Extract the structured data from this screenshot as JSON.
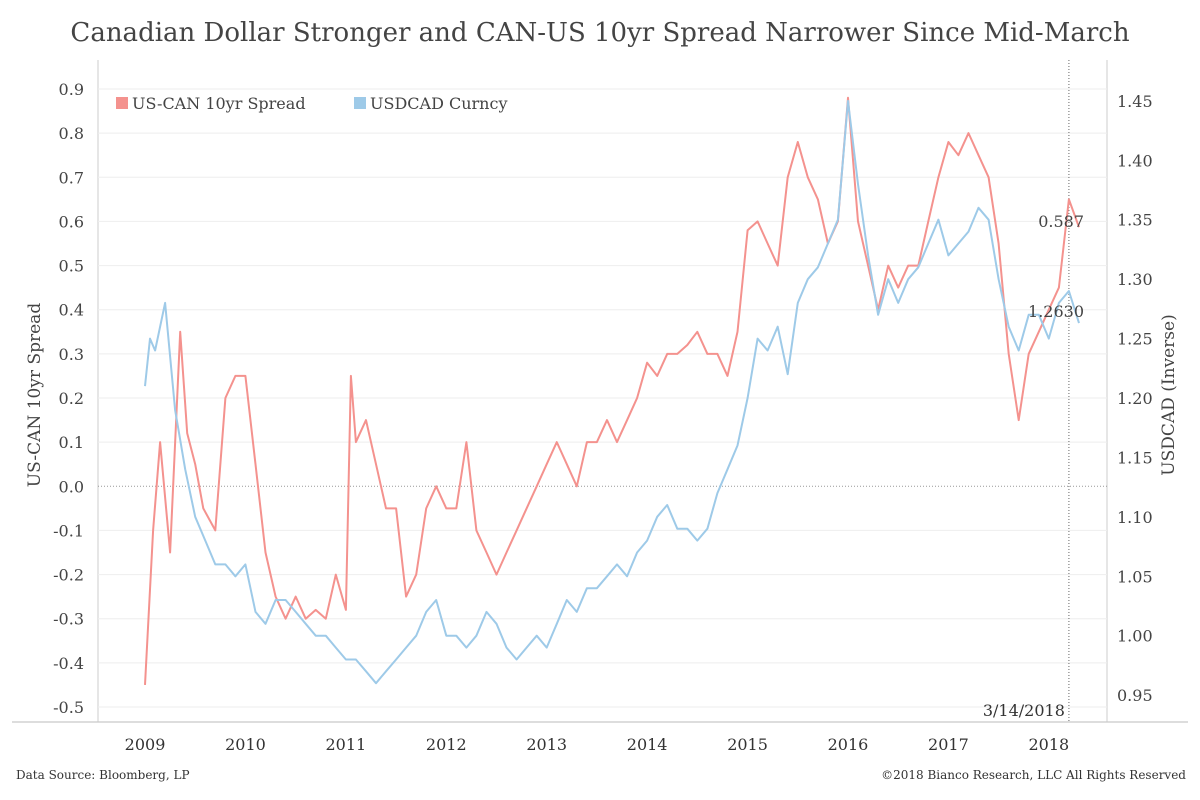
{
  "chart_data": {
    "type": "line",
    "title": "Canadian Dollar Stronger and CAN-US 10yr Spread Narrower Since Mid-March",
    "ylabel_left": "US-CAN 10yr Spread",
    "ylabel_right": "USDCAD (Inverse)",
    "left_ticks": [
      "0.9",
      "0.8",
      "0.7",
      "0.6",
      "0.5",
      "0.4",
      "0.3",
      "0.2",
      "0.1",
      "0.0",
      "-0.1",
      "-0.2",
      "-0.3",
      "-0.4",
      "-0.5"
    ],
    "right_ticks": [
      "1.45",
      "1.40",
      "1.35",
      "1.30",
      "1.25",
      "1.20",
      "1.15",
      "1.10",
      "1.05",
      "1.00",
      "0.95"
    ],
    "ylim_left": [
      -0.5,
      0.9
    ],
    "ylim_right": [
      0.94,
      1.46
    ],
    "xlim": [
      2008.95,
      2018.4
    ],
    "x_ticks": [
      "2009",
      "2010",
      "2011",
      "2012",
      "2013",
      "2014",
      "2015",
      "2016",
      "2017",
      "2018"
    ],
    "grid": "horizontal",
    "legend_position": "top-left",
    "series": [
      {
        "name": "US-CAN 10yr Spread",
        "axis": "left",
        "color": "#f4928e",
        "x": [
          2009.0,
          2009.08,
          2009.15,
          2009.25,
          2009.35,
          2009.42,
          2009.5,
          2009.58,
          2009.7,
          2009.8,
          2009.9,
          2010.0,
          2010.1,
          2010.2,
          2010.3,
          2010.4,
          2010.5,
          2010.6,
          2010.7,
          2010.8,
          2010.9,
          2011.0,
          2011.05,
          2011.1,
          2011.2,
          2011.3,
          2011.4,
          2011.5,
          2011.6,
          2011.7,
          2011.8,
          2011.9,
          2012.0,
          2012.1,
          2012.2,
          2012.3,
          2012.4,
          2012.5,
          2012.6,
          2012.7,
          2012.8,
          2012.9,
          2013.0,
          2013.1,
          2013.2,
          2013.3,
          2013.4,
          2013.5,
          2013.6,
          2013.7,
          2013.8,
          2013.9,
          2014.0,
          2014.1,
          2014.2,
          2014.3,
          2014.4,
          2014.5,
          2014.6,
          2014.7,
          2014.8,
          2014.9,
          2015.0,
          2015.1,
          2015.2,
          2015.3,
          2015.4,
          2015.5,
          2015.6,
          2015.7,
          2015.8,
          2015.9,
          2016.0,
          2016.1,
          2016.2,
          2016.3,
          2016.4,
          2016.5,
          2016.6,
          2016.7,
          2016.8,
          2016.9,
          2017.0,
          2017.1,
          2017.2,
          2017.3,
          2017.4,
          2017.5,
          2017.6,
          2017.7,
          2017.8,
          2017.9,
          2018.0,
          2018.1,
          2018.2,
          2018.3
        ],
        "values": [
          -0.45,
          -0.1,
          0.1,
          -0.15,
          0.35,
          0.12,
          0.05,
          -0.05,
          -0.1,
          0.2,
          0.25,
          0.25,
          0.05,
          -0.15,
          -0.25,
          -0.3,
          -0.25,
          -0.3,
          -0.28,
          -0.3,
          -0.2,
          -0.28,
          0.25,
          0.1,
          0.15,
          0.05,
          -0.05,
          -0.05,
          -0.25,
          -0.2,
          -0.05,
          0.0,
          -0.05,
          -0.05,
          0.1,
          -0.1,
          -0.15,
          -0.2,
          -0.15,
          -0.1,
          -0.05,
          0.0,
          0.05,
          0.1,
          0.05,
          0.0,
          0.1,
          0.1,
          0.15,
          0.1,
          0.15,
          0.2,
          0.28,
          0.25,
          0.3,
          0.3,
          0.32,
          0.35,
          0.3,
          0.3,
          0.25,
          0.35,
          0.58,
          0.6,
          0.55,
          0.5,
          0.7,
          0.78,
          0.7,
          0.65,
          0.55,
          0.6,
          0.88,
          0.6,
          0.5,
          0.4,
          0.5,
          0.45,
          0.5,
          0.5,
          0.6,
          0.7,
          0.78,
          0.75,
          0.8,
          0.75,
          0.7,
          0.55,
          0.3,
          0.15,
          0.3,
          0.35,
          0.4,
          0.45,
          0.65,
          0.587
        ]
      },
      {
        "name": "USDCAD Curncy",
        "axis": "right",
        "color": "#9ecae8",
        "x": [
          2009.0,
          2009.05,
          2009.1,
          2009.2,
          2009.3,
          2009.4,
          2009.5,
          2009.6,
          2009.7,
          2009.8,
          2009.9,
          2010.0,
          2010.1,
          2010.2,
          2010.3,
          2010.4,
          2010.5,
          2010.6,
          2010.7,
          2010.8,
          2010.9,
          2011.0,
          2011.1,
          2011.2,
          2011.3,
          2011.4,
          2011.5,
          2011.6,
          2011.7,
          2011.8,
          2011.9,
          2012.0,
          2012.1,
          2012.2,
          2012.3,
          2012.4,
          2012.5,
          2012.6,
          2012.7,
          2012.8,
          2012.9,
          2013.0,
          2013.1,
          2013.2,
          2013.3,
          2013.4,
          2013.5,
          2013.6,
          2013.7,
          2013.8,
          2013.9,
          2014.0,
          2014.1,
          2014.2,
          2014.3,
          2014.4,
          2014.5,
          2014.6,
          2014.7,
          2014.8,
          2014.9,
          2015.0,
          2015.1,
          2015.2,
          2015.3,
          2015.4,
          2015.5,
          2015.6,
          2015.7,
          2015.8,
          2015.9,
          2016.0,
          2016.1,
          2016.2,
          2016.3,
          2016.4,
          2016.5,
          2016.6,
          2016.7,
          2016.8,
          2016.9,
          2017.0,
          2017.1,
          2017.2,
          2017.3,
          2017.4,
          2017.5,
          2017.6,
          2017.7,
          2017.8,
          2017.9,
          2018.0,
          2018.1,
          2018.2,
          2018.3
        ],
        "values": [
          1.21,
          1.25,
          1.24,
          1.28,
          1.19,
          1.14,
          1.1,
          1.08,
          1.06,
          1.06,
          1.05,
          1.06,
          1.02,
          1.01,
          1.03,
          1.03,
          1.02,
          1.01,
          1.0,
          1.0,
          0.99,
          0.98,
          0.98,
          0.97,
          0.96,
          0.97,
          0.98,
          0.99,
          1.0,
          1.02,
          1.03,
          1.0,
          1.0,
          0.99,
          1.0,
          1.02,
          1.01,
          0.99,
          0.98,
          0.99,
          1.0,
          0.99,
          1.01,
          1.03,
          1.02,
          1.04,
          1.04,
          1.05,
          1.06,
          1.05,
          1.07,
          1.08,
          1.1,
          1.11,
          1.09,
          1.09,
          1.08,
          1.09,
          1.12,
          1.14,
          1.16,
          1.2,
          1.25,
          1.24,
          1.26,
          1.22,
          1.28,
          1.3,
          1.31,
          1.33,
          1.35,
          1.45,
          1.38,
          1.32,
          1.27,
          1.3,
          1.28,
          1.3,
          1.31,
          1.33,
          1.35,
          1.32,
          1.33,
          1.34,
          1.36,
          1.35,
          1.3,
          1.26,
          1.24,
          1.27,
          1.27,
          1.25,
          1.28,
          1.29,
          1.263
        ]
      }
    ],
    "annotations": [
      {
        "label": "0.587",
        "series": "US-CAN 10yr Spread"
      },
      {
        "label": "1.2630",
        "series": "USDCAD Curncy"
      },
      {
        "label": "3/14/2018",
        "x": 2018.2
      }
    ]
  },
  "footer": {
    "source": "Data Source: Bloomberg, LP",
    "copyright": "©2018 Bianco Research, LLC  All Rights Reserved"
  }
}
